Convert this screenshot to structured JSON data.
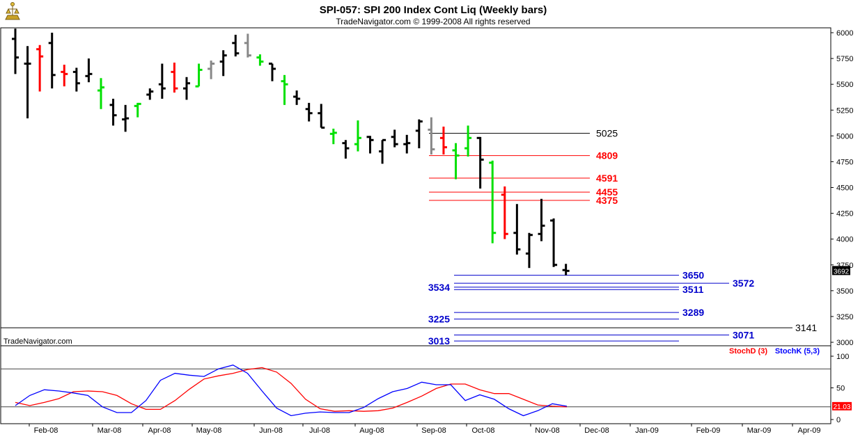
{
  "window": {
    "title": "SPI-057:  SPI 200 Index Cont Liq  (Weekly bars)",
    "subtitle": "TradeNavigator.com © 1999-2008 All rights reserved",
    "watermark": "TradeNavigator.com",
    "logo_icon": "trade-navigator-logo-icon"
  },
  "colors": {
    "up_bar": "#000000",
    "green_bar": "#00e000",
    "red_bar": "#ff0000",
    "gray_bar": "#888888",
    "black_level": "#000000",
    "red_level": "#ff0000",
    "blue_level": "#0000cc",
    "stoch_d": "#ff0000",
    "stoch_k": "#0000ff",
    "last_price_bg": "#000000",
    "stoch_last_bg": "#ff0000"
  },
  "chart_data": [
    {
      "type": "ohlc",
      "title": "SPI-057:  SPI 200 Index Cont Liq  (Weekly bars)",
      "ylim": [
        2950,
        6100
      ],
      "yticks": [
        3000,
        3250,
        3500,
        3750,
        4000,
        4250,
        4500,
        4750,
        5000,
        5250,
        5500,
        5750,
        6000
      ],
      "ytick_labels": [
        "3000",
        "3250",
        "3500",
        "3750",
        "4000",
        "4250",
        "4500",
        "4750",
        "5000",
        "5250",
        "5500",
        "5750",
        "6000"
      ],
      "x_labels": [
        "Feb-08",
        "Mar-08",
        "Apr-08",
        "May-08",
        "Jun-08",
        "Jul-08",
        "Aug-08",
        "Sep-08",
        "Oct-08",
        "Nov-08",
        "Dec-08",
        "Jan-09",
        "Feb-09",
        "Mar-09",
        "Apr-09"
      ],
      "last_price_label": "3692",
      "bars": [
        {
          "o": 5940,
          "h": 6040,
          "l": 5600,
          "c": 5760,
          "color": "black"
        },
        {
          "o": 5700,
          "h": 5870,
          "l": 5170,
          "c": 5700,
          "color": "black"
        },
        {
          "o": 5840,
          "h": 5880,
          "l": 5430,
          "c": 5770,
          "color": "red"
        },
        {
          "o": 5900,
          "h": 6000,
          "l": 5460,
          "c": 5590,
          "color": "black"
        },
        {
          "o": 5620,
          "h": 5690,
          "l": 5480,
          "c": 5600,
          "color": "red"
        },
        {
          "o": 5620,
          "h": 5660,
          "l": 5430,
          "c": 5510,
          "color": "black"
        },
        {
          "o": 5580,
          "h": 5750,
          "l": 5520,
          "c": 5600,
          "color": "black"
        },
        {
          "o": 5440,
          "h": 5560,
          "l": 5260,
          "c": 5470,
          "color": "green"
        },
        {
          "o": 5300,
          "h": 5360,
          "l": 5100,
          "c": 5200,
          "color": "black"
        },
        {
          "o": 5160,
          "h": 5300,
          "l": 5040,
          "c": 5170,
          "color": "black"
        },
        {
          "o": 5290,
          "h": 5320,
          "l": 5180,
          "c": 5310,
          "color": "green"
        },
        {
          "o": 5400,
          "h": 5460,
          "l": 5350,
          "c": 5430,
          "color": "black"
        },
        {
          "o": 5500,
          "h": 5700,
          "l": 5360,
          "c": 5460,
          "color": "black"
        },
        {
          "o": 5620,
          "h": 5710,
          "l": 5420,
          "c": 5460,
          "color": "red"
        },
        {
          "o": 5460,
          "h": 5570,
          "l": 5350,
          "c": 5510,
          "color": "black"
        },
        {
          "o": 5480,
          "h": 5700,
          "l": 5480,
          "c": 5640,
          "color": "green"
        },
        {
          "o": 5650,
          "h": 5730,
          "l": 5550,
          "c": 5700,
          "color": "gray"
        },
        {
          "o": 5720,
          "h": 5830,
          "l": 5580,
          "c": 5780,
          "color": "black"
        },
        {
          "o": 5900,
          "h": 5980,
          "l": 5770,
          "c": 5800,
          "color": "black"
        },
        {
          "o": 5900,
          "h": 5990,
          "l": 5760,
          "c": 5780,
          "color": "gray"
        },
        {
          "o": 5760,
          "h": 5790,
          "l": 5680,
          "c": 5720,
          "color": "green"
        },
        {
          "o": 5700,
          "h": 5700,
          "l": 5530,
          "c": 5650,
          "color": "black"
        },
        {
          "o": 5530,
          "h": 5590,
          "l": 5300,
          "c": 5500,
          "color": "green"
        },
        {
          "o": 5380,
          "h": 5440,
          "l": 5300,
          "c": 5360,
          "color": "black"
        },
        {
          "o": 5260,
          "h": 5320,
          "l": 5140,
          "c": 5220,
          "color": "black"
        },
        {
          "o": 5220,
          "h": 5310,
          "l": 5080,
          "c": 5080,
          "color": "black"
        },
        {
          "o": 5020,
          "h": 5070,
          "l": 4920,
          "c": 5030,
          "color": "green"
        },
        {
          "o": 4930,
          "h": 4960,
          "l": 4780,
          "c": 4880,
          "color": "black"
        },
        {
          "o": 4920,
          "h": 5150,
          "l": 4850,
          "c": 4980,
          "color": "green"
        },
        {
          "o": 4990,
          "h": 5000,
          "l": 4830,
          "c": 4960,
          "color": "black"
        },
        {
          "o": 4850,
          "h": 4960,
          "l": 4730,
          "c": 4960,
          "color": "black"
        },
        {
          "o": 4990,
          "h": 5060,
          "l": 4890,
          "c": 4920,
          "color": "black"
        },
        {
          "o": 4920,
          "h": 5010,
          "l": 4830,
          "c": 4930,
          "color": "black"
        },
        {
          "o": 5050,
          "h": 5160,
          "l": 4880,
          "c": 5140,
          "color": "black"
        },
        {
          "o": 5060,
          "h": 5180,
          "l": 4820,
          "c": 4870,
          "color": "gray"
        },
        {
          "o": 4980,
          "h": 5090,
          "l": 4820,
          "c": 4890,
          "color": "red"
        },
        {
          "o": 4860,
          "h": 4930,
          "l": 4580,
          "c": 4810,
          "color": "green"
        },
        {
          "o": 4880,
          "h": 5100,
          "l": 4800,
          "c": 4980,
          "color": "green"
        },
        {
          "o": 4980,
          "h": 4990,
          "l": 4490,
          "c": 4770,
          "color": "black"
        },
        {
          "o": 4740,
          "h": 4760,
          "l": 3960,
          "c": 4060,
          "color": "green"
        },
        {
          "o": 4430,
          "h": 4510,
          "l": 4000,
          "c": 4050,
          "color": "red"
        },
        {
          "o": 4060,
          "h": 4340,
          "l": 3850,
          "c": 3900,
          "color": "black"
        },
        {
          "o": 3860,
          "h": 4060,
          "l": 3720,
          "c": 4040,
          "color": "black"
        },
        {
          "o": 4050,
          "h": 4390,
          "l": 3980,
          "c": 4130,
          "color": "black"
        },
        {
          "o": 4180,
          "h": 4200,
          "l": 3730,
          "c": 3750,
          "color": "black"
        },
        {
          "o": 3700,
          "h": 3760,
          "l": 3650,
          "c": 3692,
          "color": "black"
        }
      ],
      "levels": [
        {
          "value": 5025,
          "label": "5025",
          "color": "black"
        },
        {
          "value": 4809,
          "label": "4809",
          "color": "red"
        },
        {
          "value": 4591,
          "label": "4591",
          "color": "red"
        },
        {
          "value": 4455,
          "label": "4455",
          "color": "red"
        },
        {
          "value": 4375,
          "label": "4375",
          "color": "red"
        },
        {
          "value": 3650,
          "label": "3650",
          "color": "blue"
        },
        {
          "value": 3572,
          "label": "3572",
          "color": "blue"
        },
        {
          "value": 3534,
          "label": "3534",
          "color": "blue"
        },
        {
          "value": 3511,
          "label": "3511",
          "color": "blue"
        },
        {
          "value": 3289,
          "label": "3289",
          "color": "blue"
        },
        {
          "value": 3225,
          "label": "3225",
          "color": "blue"
        },
        {
          "value": 3141,
          "label": "3141",
          "color": "black"
        },
        {
          "value": 3071,
          "label": "3071",
          "color": "blue"
        },
        {
          "value": 3013,
          "label": "3013",
          "color": "blue"
        }
      ]
    },
    {
      "type": "line",
      "ylim": [
        -10,
        110
      ],
      "yticks": [
        0,
        50,
        100
      ],
      "ytick_labels": [
        "0",
        "50",
        "100"
      ],
      "last_value_label": "21.03",
      "series": [
        {
          "name": "StochD (3)",
          "color": "red",
          "values": [
            27,
            22,
            27,
            33,
            44,
            45,
            44,
            38,
            25,
            16,
            16,
            30,
            48,
            64,
            69,
            73,
            79,
            82,
            75,
            57,
            32,
            17,
            13,
            14,
            13,
            14,
            18,
            27,
            37,
            49,
            56,
            56,
            47,
            41,
            41,
            32,
            23,
            21,
            20
          ]
        },
        {
          "name": "StochK (5,3)",
          "color": "blue",
          "values": [
            22,
            38,
            47,
            45,
            42,
            38,
            20,
            11,
            11,
            30,
            62,
            73,
            70,
            68,
            80,
            86,
            73,
            45,
            18,
            6,
            10,
            12,
            11,
            11,
            19,
            33,
            44,
            49,
            59,
            55,
            55,
            30,
            39,
            32,
            17,
            6,
            14,
            25,
            21
          ]
        }
      ]
    }
  ]
}
